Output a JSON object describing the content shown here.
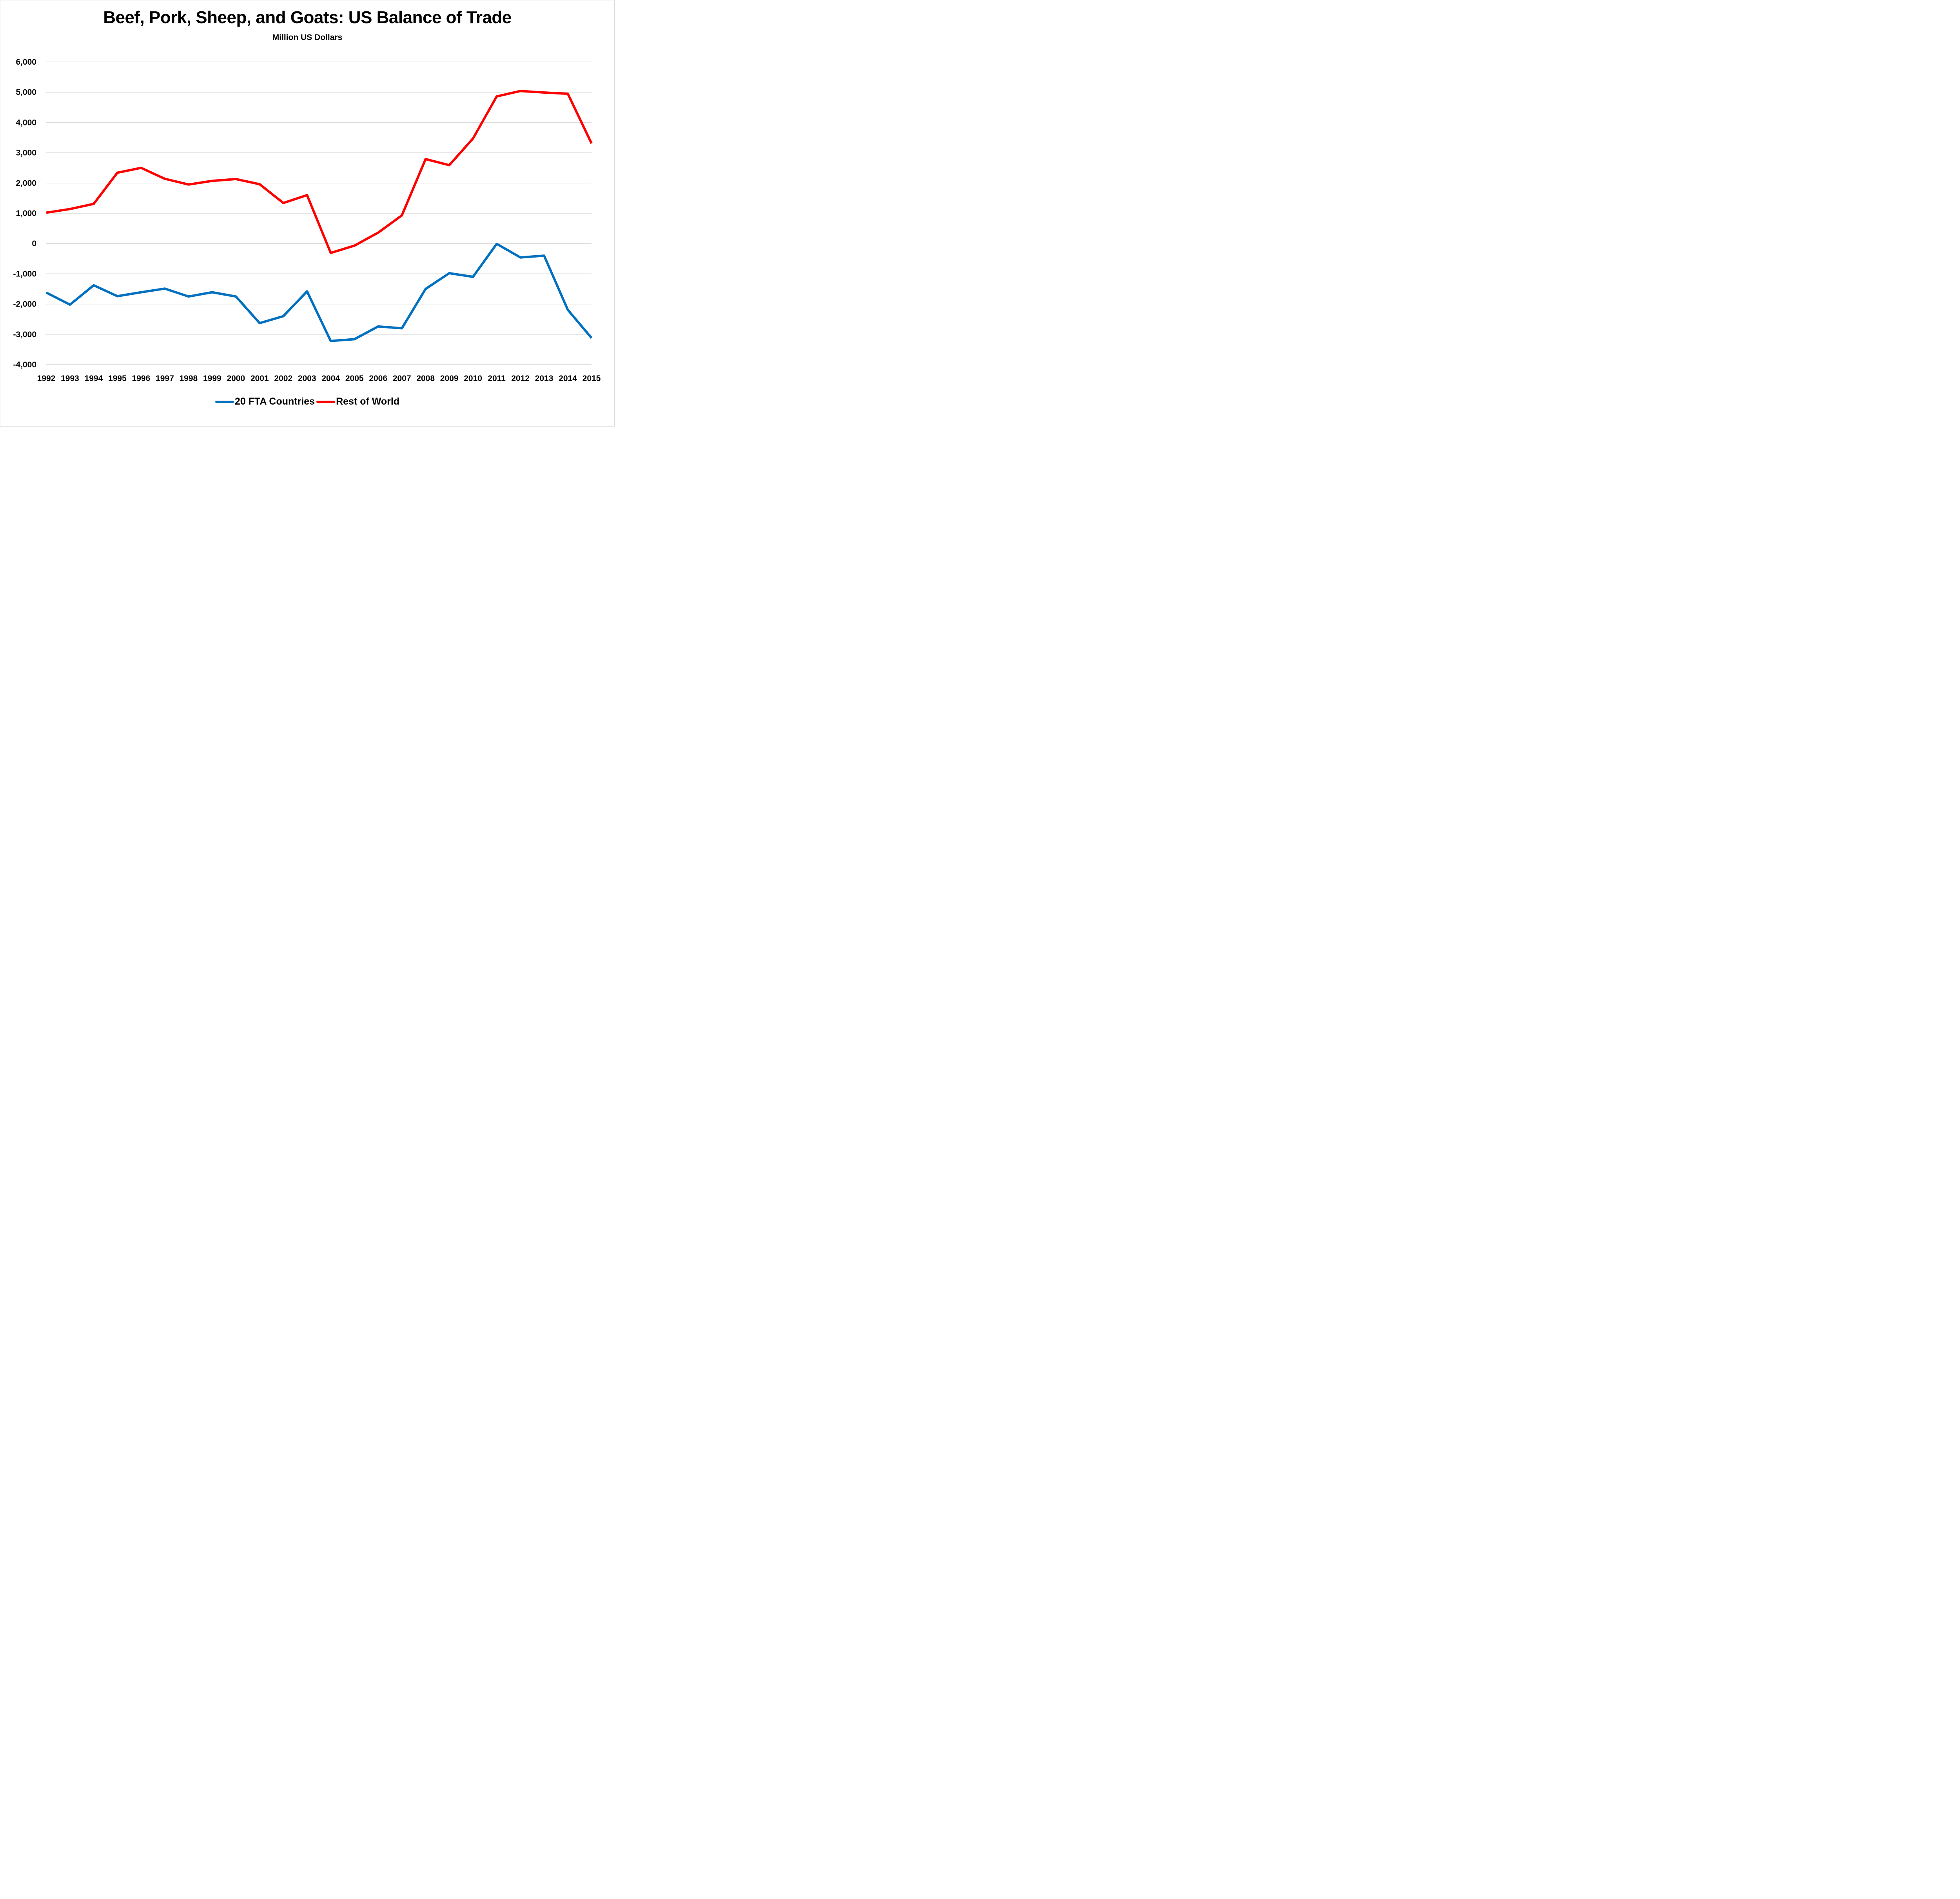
{
  "chart_data": {
    "type": "line",
    "title": "Beef, Pork, Sheep, and Goats: US Balance of Trade",
    "subtitle": "Million US Dollars",
    "xlabel": "",
    "ylabel": "",
    "ylim": [
      -4000,
      6000
    ],
    "yticks": [
      6000,
      5000,
      4000,
      3000,
      2000,
      1000,
      0,
      -1000,
      -2000,
      -3000,
      -4000
    ],
    "ytick_labels": [
      "6,000",
      "5,000",
      "4,000",
      "3,000",
      "2,000",
      "1,000",
      "0",
      "-1,000",
      "-2,000",
      "-3,000",
      "-4,000"
    ],
    "grid": true,
    "legend_position": "bottom",
    "categories": [
      "1992",
      "1993",
      "1994",
      "1995",
      "1996",
      "1997",
      "1998",
      "1999",
      "2000",
      "2001",
      "2002",
      "2003",
      "2004",
      "2005",
      "2006",
      "2007",
      "2008",
      "2009",
      "2010",
      "2011",
      "2012",
      "2013",
      "2014",
      "2015"
    ],
    "series": [
      {
        "name": "20 FTA Countries",
        "color": "#0070c0",
        "values": [
          -1620,
          -2020,
          -1380,
          -1740,
          -1610,
          -1490,
          -1750,
          -1610,
          -1750,
          -2630,
          -2400,
          -1580,
          -3220,
          -3160,
          -2740,
          -2800,
          -1500,
          -980,
          -1100,
          -10,
          -460,
          -400,
          -2190,
          -3120
        ]
      },
      {
        "name": "Rest of World",
        "color": "#ff0000",
        "values": [
          1020,
          1140,
          1310,
          2340,
          2500,
          2140,
          1950,
          2070,
          2130,
          1960,
          1340,
          1600,
          -310,
          -70,
          360,
          930,
          2790,
          2590,
          3470,
          4860,
          5040,
          4990,
          4950,
          3310
        ]
      }
    ]
  }
}
